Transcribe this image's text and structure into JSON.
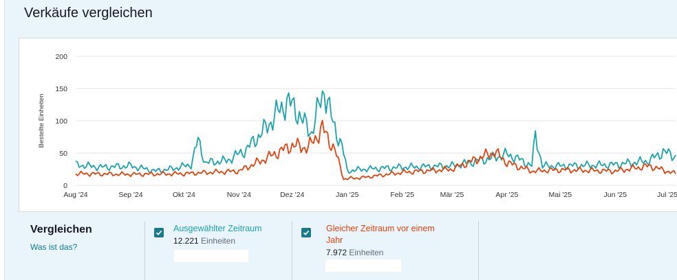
{
  "page": {
    "title": "Verkäufe vergleichen"
  },
  "colors": {
    "selected": "#1aa3ad",
    "previous": "#e3410c",
    "grid": "#e6e6e6",
    "axis": "#333333"
  },
  "chart_data": {
    "type": "line",
    "ylabel": "Bestellte Einheiten",
    "ylim": [
      0,
      200
    ],
    "yticks": [
      0,
      50,
      100,
      150,
      200
    ],
    "x_tick_labels": [
      "Aug '24",
      "Sep '24",
      "Okt '24",
      "Nov '24",
      "Dez '24",
      "Jan '25",
      "Feb '25",
      "Mär '25",
      "Apr '25",
      "Mai '25",
      "Jun '25",
      "Jul '25"
    ],
    "x_start": "2024-08-01",
    "x_end": "2025-07-05",
    "grid": true,
    "series": [
      {
        "name": "Ausgewählter Zeitraum",
        "key": "selected",
        "anchors": [
          [
            "2024-08-01",
            32
          ],
          [
            "2024-08-15",
            28
          ],
          [
            "2024-09-01",
            30
          ],
          [
            "2024-09-15",
            22
          ],
          [
            "2024-09-25",
            26
          ],
          [
            "2024-10-05",
            32
          ],
          [
            "2024-10-09",
            70
          ],
          [
            "2024-10-13",
            35
          ],
          [
            "2024-10-25",
            38
          ],
          [
            "2024-11-05",
            55
          ],
          [
            "2024-11-15",
            85
          ],
          [
            "2024-11-22",
            110
          ],
          [
            "2024-11-28",
            130
          ],
          [
            "2024-12-03",
            118
          ],
          [
            "2024-12-08",
            95
          ],
          [
            "2024-12-12",
            82
          ],
          [
            "2024-12-15",
            112
          ],
          [
            "2024-12-19",
            150
          ],
          [
            "2024-12-24",
            95
          ],
          [
            "2024-12-29",
            62
          ],
          [
            "2025-01-01",
            22
          ],
          [
            "2025-01-10",
            25
          ],
          [
            "2025-02-01",
            28
          ],
          [
            "2025-03-01",
            30
          ],
          [
            "2025-03-20",
            40
          ],
          [
            "2025-04-01",
            48
          ],
          [
            "2025-04-08",
            40
          ],
          [
            "2025-04-15",
            30
          ],
          [
            "2025-04-17",
            78
          ],
          [
            "2025-04-21",
            30
          ],
          [
            "2025-05-01",
            30
          ],
          [
            "2025-06-01",
            32
          ],
          [
            "2025-06-20",
            38
          ],
          [
            "2025-06-28",
            52
          ],
          [
            "2025-07-05",
            45
          ]
        ]
      },
      {
        "name": "Gleicher Zeitraum vor einem Jahr",
        "key": "previous",
        "anchors": [
          [
            "2024-08-01",
            18
          ],
          [
            "2024-09-01",
            17
          ],
          [
            "2024-10-01",
            18
          ],
          [
            "2024-10-15",
            20
          ],
          [
            "2024-11-01",
            22
          ],
          [
            "2024-11-15",
            40
          ],
          [
            "2024-12-01",
            62
          ],
          [
            "2024-12-10",
            58
          ],
          [
            "2024-12-18",
            88
          ],
          [
            "2024-12-25",
            55
          ],
          [
            "2024-12-30",
            10
          ],
          [
            "2025-01-10",
            12
          ],
          [
            "2025-02-01",
            20
          ],
          [
            "2025-03-01",
            25
          ],
          [
            "2025-03-25",
            52
          ],
          [
            "2025-04-01",
            35
          ],
          [
            "2025-04-15",
            22
          ],
          [
            "2025-05-01",
            24
          ],
          [
            "2025-06-01",
            22
          ],
          [
            "2025-06-20",
            30
          ],
          [
            "2025-07-05",
            18
          ]
        ]
      }
    ]
  },
  "compare": {
    "title": "Vergleichen",
    "help_link": "Was ist das?",
    "selected": {
      "label": "Ausgewählter Zeitraum",
      "value": "12.221",
      "unit": "Einheiten"
    },
    "previous": {
      "label_line1": "Gleicher Zeitraum vor einem",
      "label_line2": "Jahr",
      "value": "7.972",
      "unit": "Einheiten"
    }
  }
}
